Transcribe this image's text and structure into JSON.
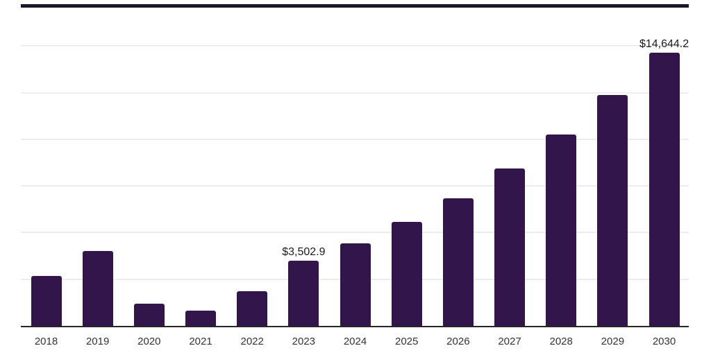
{
  "chart": {
    "bar_color": "#32154a",
    "axis_color": "#262626",
    "gridline_color": "#ededed",
    "top_border_color": "#18182a",
    "data_label_color": "#1a1a1a",
    "tick_label_color": "#333333",
    "background_color": "#ffffff"
  },
  "chart_data": {
    "type": "bar",
    "title": "",
    "xlabel": "",
    "ylabel": "",
    "categories": [
      "2018",
      "2019",
      "2020",
      "2021",
      "2022",
      "2023",
      "2024",
      "2025",
      "2026",
      "2027",
      "2028",
      "2029",
      "2030"
    ],
    "values": [
      2690,
      4030,
      1190,
      820,
      1860,
      3502.9,
      4430,
      5570,
      6840,
      8450,
      10270,
      12360,
      14644.2
    ],
    "data_labels": [
      {
        "category": "2023",
        "text": "$3,502.9"
      },
      {
        "category": "2030",
        "text": "$14,644.2"
      }
    ],
    "ylim": [
      0,
      17500
    ],
    "gridline_step": 2500,
    "grid": "horizontal-only",
    "legend": "none",
    "y_axis_ticks_visible": false
  }
}
